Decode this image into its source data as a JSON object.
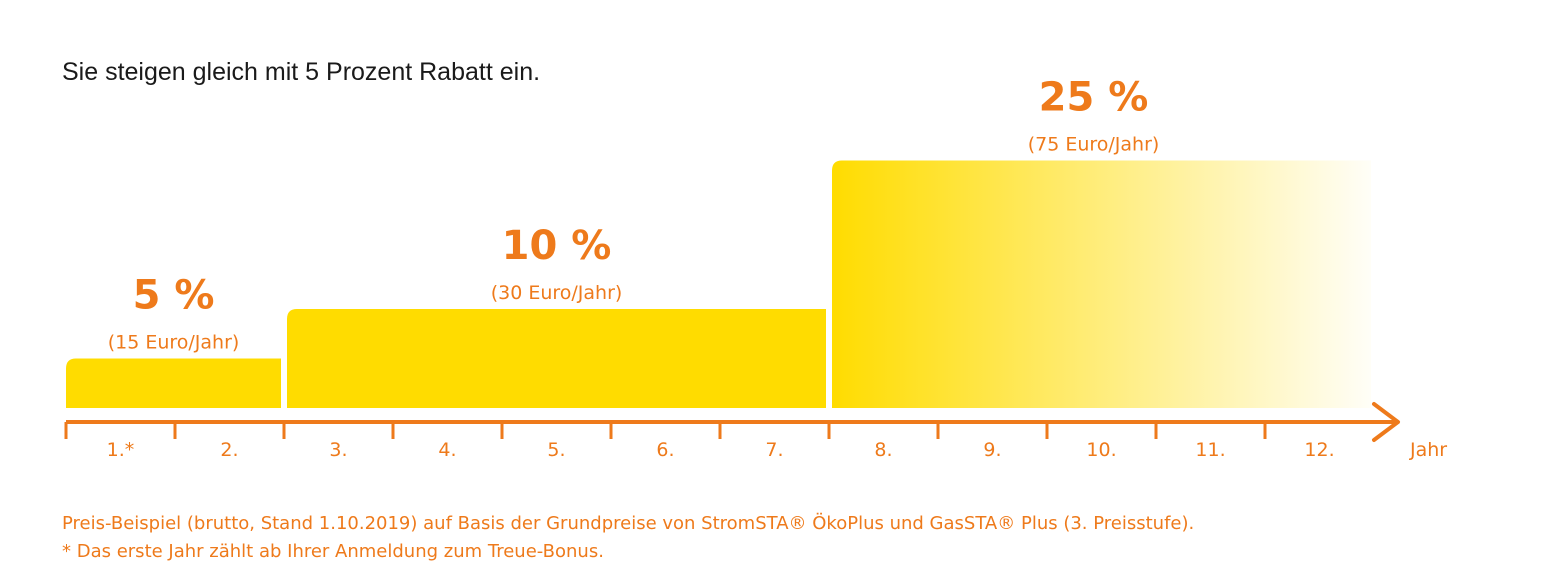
{
  "intro": "Sie steigen gleich mit 5 Prozent Rabatt ein.",
  "colors": {
    "accent": "#EE7A1B",
    "bar": "#FFDC00",
    "text": "#1a1a1a"
  },
  "chart_data": {
    "type": "bar",
    "x_unit_label": "Jahr",
    "categories": [
      "1.*",
      "2.",
      "3.",
      "4.",
      "5.",
      "6.",
      "7.",
      "8.",
      "9.",
      "10.",
      "11.",
      "12."
    ],
    "tiers": [
      {
        "from_index": 0,
        "to_index": 1,
        "value": 5,
        "value_label": "5 %",
        "euro_label": "(15 Euro/Jahr)"
      },
      {
        "from_index": 2,
        "to_index": 6,
        "value": 10,
        "value_label": "10 %",
        "euro_label": "(30 Euro/Jahr)"
      },
      {
        "from_index": 7,
        "to_index": 11,
        "value": 25,
        "value_label": "25 %",
        "euro_label": "(75 Euro/Jahr)",
        "fade": true
      }
    ],
    "ylim": [
      0,
      25
    ]
  },
  "footnotes": {
    "line1": "Preis-Beispiel (brutto, Stand 1.10.2019) auf Basis der Grundpreise von StromSTA® ÖkoPlus und GasSTA® Plus (3. Preisstufe).",
    "line2": "* Das erste Jahr zählt ab Ihrer Anmeldung zum Treue-Bonus."
  }
}
